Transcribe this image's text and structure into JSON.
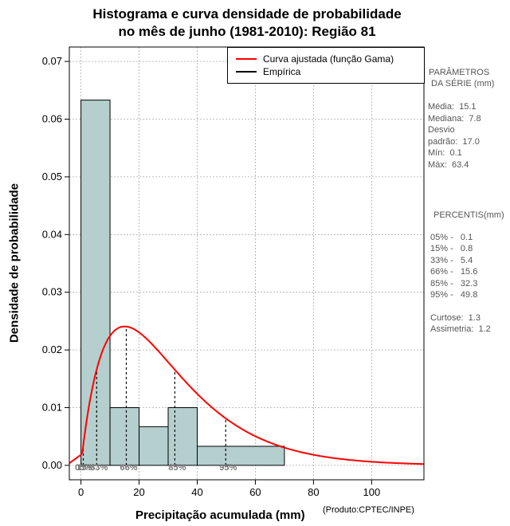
{
  "colors": {
    "bar_fill": "#b4cfcd",
    "curve": "#ff0000",
    "empirical": "#000000",
    "grid": "#aaaaaa"
  },
  "chart_data": {
    "type": "bar",
    "title": "Histograma e curva densidade de probabilidade",
    "subtitle": "no mês de junho (1981-2010): Região 81",
    "xlabel": "Precipitação acumulada (mm)",
    "ylabel": "Densidade de probabilidade",
    "credit": "(Produto:CPTEC/INPE)",
    "xlim": [
      -4,
      118
    ],
    "ylim": [
      -0.0025,
      0.0725
    ],
    "xticks": [
      0,
      20,
      40,
      60,
      80,
      100
    ],
    "yticks": [
      "0.00",
      "0.01",
      "0.02",
      "0.03",
      "0.04",
      "0.05",
      "0.06",
      "0.07"
    ],
    "grid": true,
    "bins": [
      {
        "x0": 0,
        "x1": 10,
        "density": 0.0633
      },
      {
        "x0": 10,
        "x1": 20,
        "density": 0.01
      },
      {
        "x0": 20,
        "x1": 30,
        "density": 0.0067
      },
      {
        "x0": 30,
        "x1": 40,
        "density": 0.01
      },
      {
        "x0": 40,
        "x1": 70,
        "density": 0.0033
      }
    ],
    "gamma_fit": {
      "shape": 1.97,
      "rate": 0.0646
    },
    "percentile_markers": [
      {
        "label": "05%",
        "x": 0.1
      },
      {
        "label": "15%",
        "x": 0.8
      },
      {
        "label": "33%",
        "x": 5.4
      },
      {
        "label": "66%",
        "x": 15.6
      },
      {
        "label": "85%",
        "x": 32.3
      },
      {
        "label": "95%",
        "x": 49.8
      }
    ],
    "legend": [
      {
        "label": "Curva ajustada (função Gama)",
        "color": "#ff0000"
      },
      {
        "label": "Empírica",
        "color": "#000000"
      }
    ]
  },
  "stats": {
    "header1": "PARÂMETROS",
    "header2": "DA SÉRIE (mm)",
    "lines": [
      "Média:  15.1",
      "Mediana:  7.8",
      "Desvio",
      "padrão:  17.0",
      "Mín:  0.1",
      "Máx:  63.4"
    ]
  },
  "percentis": {
    "header": "PERCENTIS(mm)",
    "lines": [
      "05% -   0.1",
      "15% -   0.8",
      "33% -   5.4",
      "66% -   15.6",
      "85% -   32.3",
      "95% -   49.8"
    ],
    "curtose": "Curtose:  1.3",
    "assimetria": "Assimetria:  1.2"
  }
}
